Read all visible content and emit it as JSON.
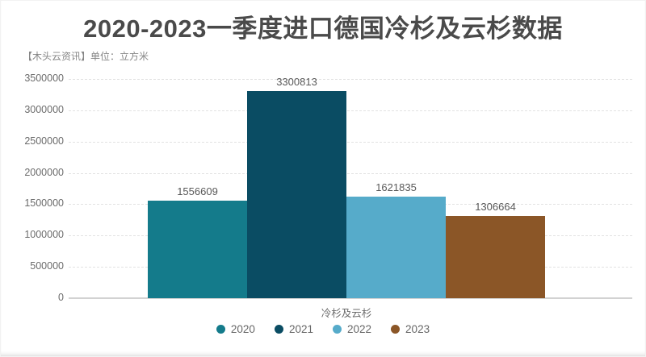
{
  "header": {
    "title": "2020-2023一季度进口德国冷杉及云杉数据",
    "subtitle": "【木头云资讯】单位：立方米"
  },
  "chart_data": {
    "type": "bar",
    "title": "2020-2023一季度进口德国冷杉及云杉数据",
    "unit_note": "【木头云资讯】单位：立方米",
    "categories": [
      "冷杉及云杉"
    ],
    "series": [
      {
        "name": "2020",
        "color": "#147b8b",
        "values": [
          1556609
        ]
      },
      {
        "name": "2021",
        "color": "#0a4c63",
        "values": [
          3300813
        ]
      },
      {
        "name": "2022",
        "color": "#56abca",
        "values": [
          1621835
        ]
      },
      {
        "name": "2023",
        "color": "#8b5627",
        "values": [
          1306664
        ]
      }
    ],
    "xlabel": "冷杉及云杉",
    "ylabel": "",
    "ylim": [
      0,
      3500000
    ],
    "ytick_step": 500000,
    "ytick_labels": [
      "0",
      "500000",
      "1000000",
      "1500000",
      "2000000",
      "2500000",
      "3000000",
      "3500000"
    ],
    "grid": "horizontal-dashed",
    "legend_position": "bottom",
    "value_labels_shown": true
  },
  "colors": {
    "title_text": "#4a4a4a",
    "subtitle_text": "#858585",
    "axis_text": "#6b6b6b",
    "value_label_text": "#595959",
    "gridline": "#e2e2e2",
    "axis_line": "#d2d2d2",
    "background": "#ffffff"
  }
}
